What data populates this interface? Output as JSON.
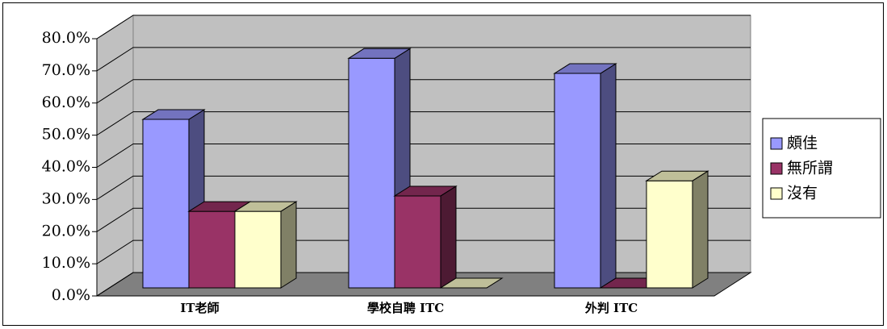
{
  "chart_data": {
    "type": "bar3d",
    "categories": [
      "IT老師",
      "學校自聘 ITC",
      "外判 ITC"
    ],
    "series": [
      {
        "name": "頗佳",
        "color": "#9999ff",
        "values": [
          52.4,
          71.4,
          66.7
        ]
      },
      {
        "name": "無所謂",
        "color": "#993366",
        "values": [
          23.8,
          28.6,
          0
        ]
      },
      {
        "name": "沒有",
        "color": "#ffffcc",
        "values": [
          23.8,
          0,
          33.3
        ]
      }
    ],
    "ylim": [
      0,
      80
    ],
    "yticks": [
      {
        "value": 0,
        "label": "0.0%"
      },
      {
        "value": 10,
        "label": "10.0%"
      },
      {
        "value": 20,
        "label": "20.0%"
      },
      {
        "value": 30,
        "label": "30.0%"
      },
      {
        "value": 40,
        "label": "40.0%"
      },
      {
        "value": 50,
        "label": "50.0%"
      },
      {
        "value": 60,
        "label": "60.0%"
      },
      {
        "value": 70,
        "label": "70.0%"
      },
      {
        "value": 80,
        "label": "80.0%"
      }
    ],
    "grid": true,
    "legend": "right"
  }
}
